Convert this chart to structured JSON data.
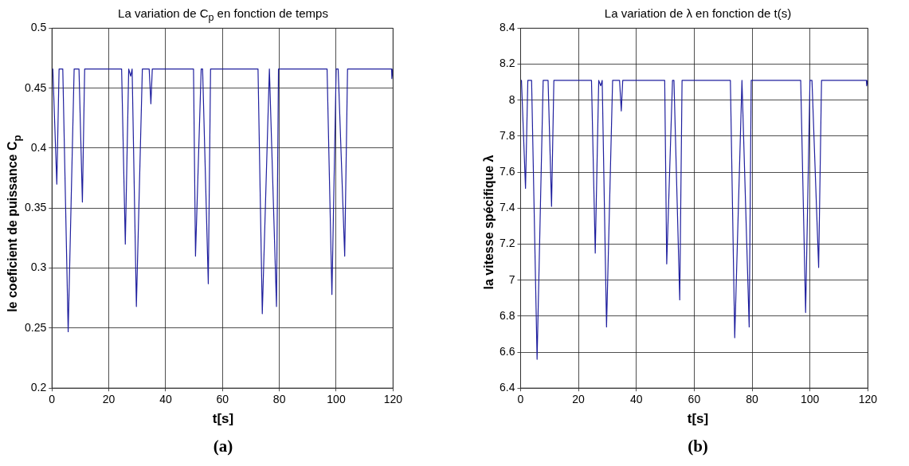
{
  "chart_data": [
    {
      "type": "line",
      "title": "La variation de C$_{p}$ en fonction de temps",
      "xlabel": "t[s]",
      "ylabel": "le coeficient de puissance C$_{p}$",
      "annotations": [
        "(a)"
      ],
      "grid": true,
      "legend": false,
      "marker": "none",
      "line_style": "solid",
      "xlim": [
        0,
        120
      ],
      "xticks": [
        0,
        20,
        40,
        60,
        80,
        100,
        120
      ],
      "ylim": [
        0.2,
        0.5
      ],
      "yticks": [
        0.2,
        0.25,
        0.3,
        0.35,
        0.4,
        0.45,
        0.5
      ],
      "series": [
        {
          "color": "#1f1f9e",
          "x": [
            0,
            0.3,
            1.7,
            2.5,
            3.8,
            5.7,
            7.8,
            9.5,
            10.7,
            11.5,
            24.5,
            25.8,
            27,
            27.7,
            28.2,
            29.7,
            31.8,
            34.2,
            34.8,
            35.3,
            49.8,
            50.5,
            52.5,
            53,
            55,
            55.8,
            72.5,
            74,
            76.5,
            79,
            79.7,
            96.8,
            98.5,
            100,
            100.7,
            103,
            104,
            119.5,
            119.6,
            120
          ],
          "values": [
            0.466,
            0.466,
            0.37,
            0.466,
            0.466,
            0.247,
            0.466,
            0.466,
            0.355,
            0.466,
            0.466,
            0.32,
            0.466,
            0.46,
            0.466,
            0.268,
            0.466,
            0.466,
            0.437,
            0.466,
            0.466,
            0.31,
            0.466,
            0.466,
            0.287,
            0.466,
            0.466,
            0.262,
            0.466,
            0.268,
            0.466,
            0.466,
            0.278,
            0.466,
            0.466,
            0.31,
            0.466,
            0.466,
            0.458,
            0.466
          ]
        }
      ]
    },
    {
      "type": "line",
      "title": "La variation de λ en fonction de t(s)",
      "xlabel": "t[s]",
      "ylabel": "la vitesse spécifique λ",
      "annotations": [
        "(b)"
      ],
      "grid": true,
      "legend": false,
      "marker": "none",
      "line_style": "solid",
      "xlim": [
        0,
        120
      ],
      "xticks": [
        0,
        20,
        40,
        60,
        80,
        100,
        120
      ],
      "ylim": [
        6.4,
        8.4
      ],
      "yticks": [
        6.4,
        6.6,
        6.8,
        7,
        7.2,
        7.4,
        7.6,
        7.8,
        8,
        8.2,
        8.4
      ],
      "series": [
        {
          "color": "#1f1f9e",
          "x": [
            0,
            0.3,
            1.7,
            2.5,
            3.8,
            5.7,
            7.8,
            9.5,
            10.7,
            11.5,
            24.5,
            25.8,
            27,
            27.7,
            28.2,
            29.7,
            31.8,
            34.2,
            34.8,
            35.3,
            49.8,
            50.5,
            52.5,
            53,
            55,
            55.8,
            72.5,
            74,
            76.5,
            79,
            79.7,
            96.8,
            98.5,
            100,
            100.7,
            103,
            104,
            119.5,
            119.6,
            120
          ],
          "values": [
            8.11,
            8.11,
            7.51,
            8.11,
            8.11,
            6.56,
            8.11,
            8.11,
            7.41,
            8.11,
            8.11,
            7.15,
            8.11,
            8.08,
            8.11,
            6.74,
            8.11,
            8.11,
            7.94,
            8.11,
            8.11,
            7.09,
            8.11,
            8.11,
            6.89,
            8.11,
            8.11,
            6.68,
            8.11,
            6.74,
            8.11,
            8.11,
            6.82,
            8.11,
            8.11,
            7.07,
            8.11,
            8.11,
            8.08,
            8.11
          ]
        }
      ]
    }
  ]
}
